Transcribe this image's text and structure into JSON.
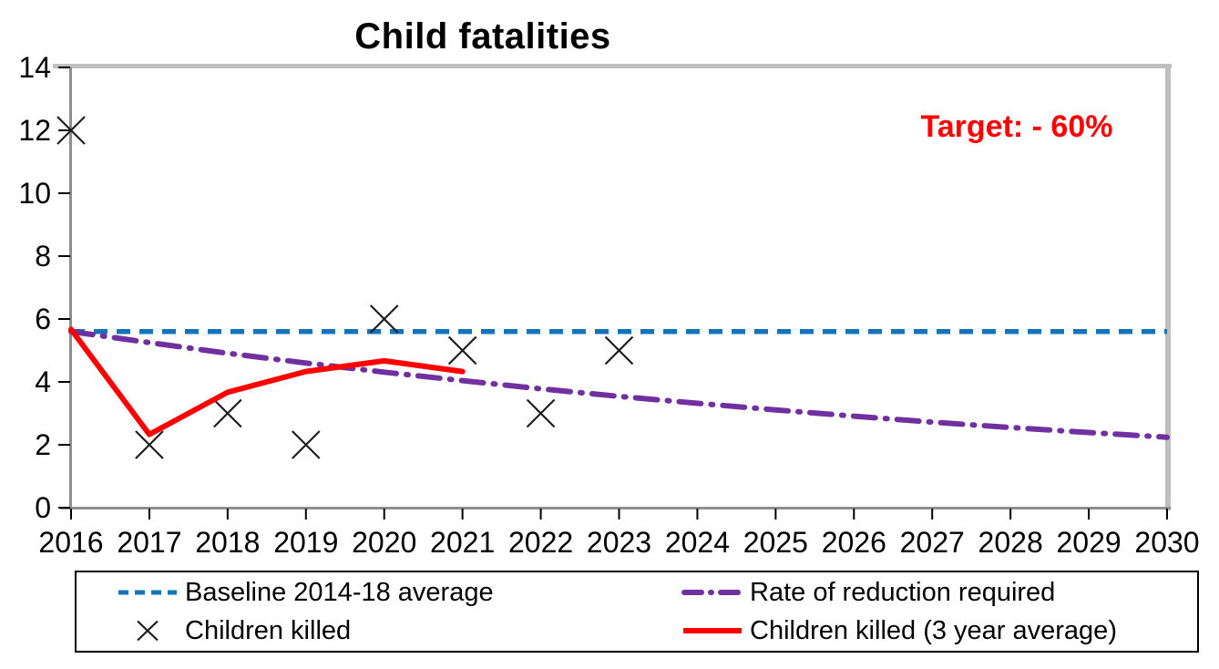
{
  "chart_data": {
    "type": "line",
    "title": "Child fatalities",
    "annotation": {
      "text": "Target: - 60%",
      "color": "#FF0000"
    },
    "xlabel": "",
    "ylabel": "",
    "xlim": [
      2016,
      2030
    ],
    "ylim": [
      0,
      14
    ],
    "x_ticks": [
      2016,
      2017,
      2018,
      2019,
      2020,
      2021,
      2022,
      2023,
      2024,
      2025,
      2026,
      2027,
      2028,
      2029,
      2030
    ],
    "y_ticks": [
      0,
      2,
      4,
      6,
      8,
      10,
      12,
      14
    ],
    "grid": false,
    "legend_position": "bottom",
    "series": [
      {
        "name": "Baseline 2014-18 average",
        "type": "line",
        "line_style": "dashed",
        "color": "#1374BC",
        "x": [
          2016,
          2030
        ],
        "values": [
          5.6,
          5.6
        ]
      },
      {
        "name": "Rate of reduction required",
        "type": "line",
        "line_style": "dash-dot",
        "color": "#7030A0",
        "x": [
          2016,
          2017,
          2018,
          2019,
          2020,
          2021,
          2022,
          2023,
          2024,
          2025,
          2026,
          2027,
          2028,
          2029,
          2030
        ],
        "values": [
          5.6,
          5.25,
          4.91,
          4.6,
          4.31,
          4.04,
          3.78,
          3.54,
          3.32,
          3.11,
          2.91,
          2.72,
          2.55,
          2.39,
          2.24
        ]
      },
      {
        "name": "Children killed",
        "type": "scatter",
        "marker": "x",
        "color": "#1F1F1F",
        "x": [
          2016,
          2017,
          2018,
          2019,
          2020,
          2021,
          2022,
          2023
        ],
        "values": [
          12,
          2,
          3,
          2,
          6,
          5,
          3,
          5
        ]
      },
      {
        "name": "Children killed (3 year average)",
        "type": "line",
        "line_style": "solid",
        "color": "#FF0000",
        "x": [
          2016,
          2017,
          2018,
          2019,
          2020,
          2021
        ],
        "values": [
          5.67,
          2.33,
          3.67,
          4.33,
          4.67,
          4.33
        ]
      }
    ]
  }
}
